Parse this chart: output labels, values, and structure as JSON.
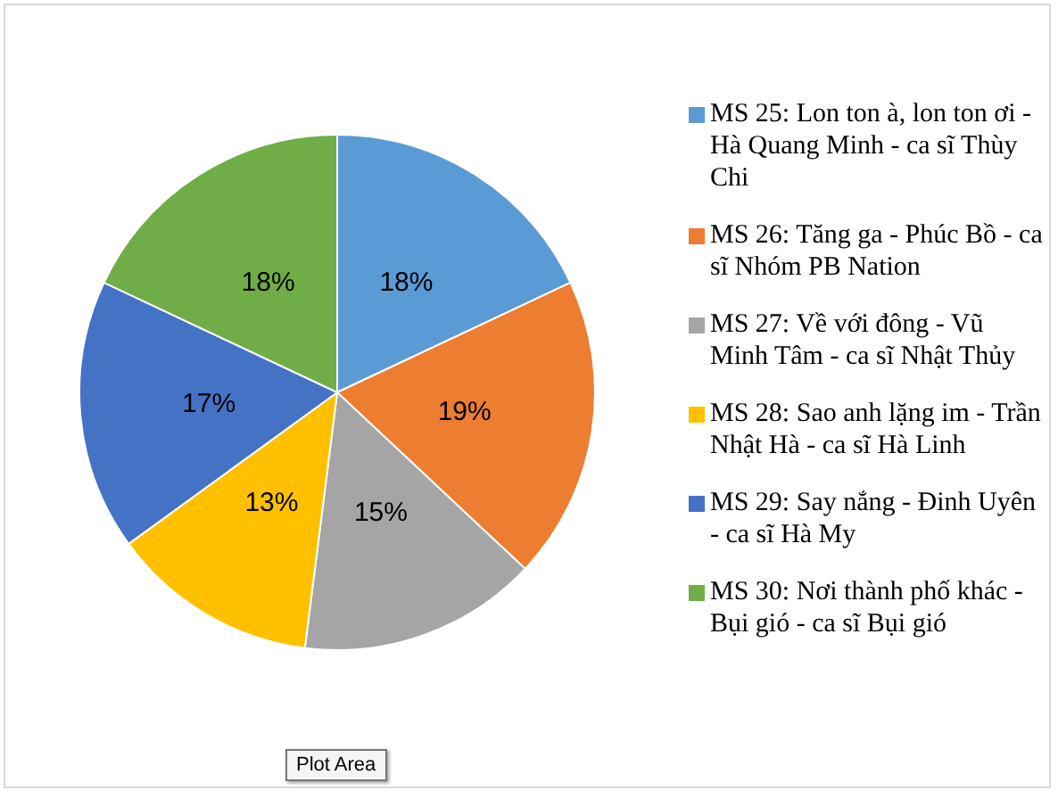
{
  "chart_data": {
    "type": "pie",
    "categories": [
      "MS 25: Lon ton à, lon ton ơi - Hà Quang Minh - ca sĩ Thùy Chi",
      "MS 26: Tăng ga - Phúc Bồ - ca sĩ Nhóm PB Nation",
      "MS 27: Về với đông - Vũ Minh Tâm - ca sĩ Nhật Thủy",
      "MS 28: Sao anh lặng im - Trần Nhật Hà - ca sĩ Hà Linh",
      "MS 29: Say nắng - Đinh Uyên - ca sĩ Hà My",
      "MS 30: Nơi thành phố khác - Bụi gió - ca sĩ Bụi gió"
    ],
    "values": [
      18,
      19,
      15,
      13,
      17,
      18
    ],
    "value_labels": [
      "18%",
      "19%",
      "15%",
      "13%",
      "17%",
      "18%"
    ],
    "colors": [
      "#5b9bd5",
      "#ed7d31",
      "#a5a5a5",
      "#ffc000",
      "#4472c4",
      "#70ad47"
    ],
    "legend": "right",
    "annotations": [
      "Plot Area"
    ]
  }
}
